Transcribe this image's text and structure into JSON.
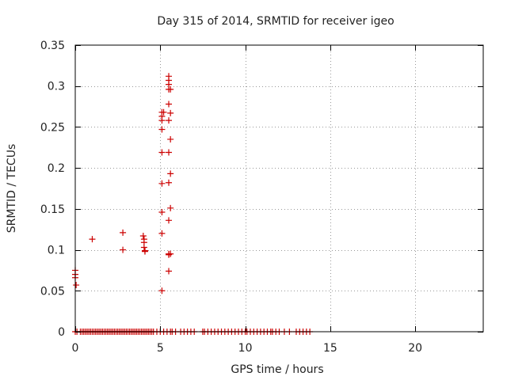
{
  "chart_data": {
    "type": "scatter",
    "title": "Day 315 of 2014, SRMTID for receiver igeo",
    "xlabel": "GPS time / hours",
    "ylabel": "SRMTID / TECUs",
    "xlim": [
      0,
      24
    ],
    "ylim": [
      0,
      0.35
    ],
    "xticks": [
      0,
      5,
      10,
      15,
      20
    ],
    "yticks": [
      0,
      0.05,
      0.1,
      0.15,
      0.2,
      0.25,
      0.3,
      0.35
    ],
    "xtick_labels": [
      "0",
      "5",
      "10",
      "15",
      "20"
    ],
    "ytick_labels": [
      "0",
      "0.05",
      "0.1",
      "0.15",
      "0.2",
      "0.25",
      "0.3",
      "0.35"
    ],
    "grid": true,
    "marker": "+",
    "color": "#cc0000",
    "series": [
      {
        "name": "SRMTID",
        "points": [
          [
            0.0,
            0.075
          ],
          [
            0.0,
            0.07
          ],
          [
            0.0,
            0.066
          ],
          [
            0.05,
            0.057
          ],
          [
            1.0,
            0.113
          ],
          [
            2.8,
            0.121
          ],
          [
            2.8,
            0.1
          ],
          [
            4.0,
            0.117
          ],
          [
            4.05,
            0.113
          ],
          [
            4.05,
            0.109
          ],
          [
            4.05,
            0.103
          ],
          [
            4.1,
            0.099
          ],
          [
            4.1,
            0.098
          ],
          [
            5.1,
            0.268
          ],
          [
            5.1,
            0.263
          ],
          [
            5.1,
            0.258
          ],
          [
            5.1,
            0.247
          ],
          [
            5.1,
            0.219
          ],
          [
            5.1,
            0.181
          ],
          [
            5.1,
            0.146
          ],
          [
            5.1,
            0.12
          ],
          [
            5.1,
            0.05
          ],
          [
            5.2,
            0.268
          ],
          [
            5.5,
            0.312
          ],
          [
            5.5,
            0.307
          ],
          [
            5.5,
            0.302
          ],
          [
            5.5,
            0.296
          ],
          [
            5.5,
            0.278
          ],
          [
            5.5,
            0.258
          ],
          [
            5.5,
            0.219
          ],
          [
            5.5,
            0.182
          ],
          [
            5.5,
            0.136
          ],
          [
            5.5,
            0.095
          ],
          [
            5.5,
            0.094
          ],
          [
            5.5,
            0.074
          ],
          [
            5.6,
            0.296
          ],
          [
            5.6,
            0.267
          ],
          [
            5.6,
            0.235
          ],
          [
            5.6,
            0.193
          ],
          [
            5.6,
            0.151
          ],
          [
            5.6,
            0.095
          ]
        ],
        "zero_x": [
          0.0,
          0.1,
          0.3,
          0.4,
          0.5,
          0.6,
          0.7,
          0.8,
          0.9,
          1.0,
          1.1,
          1.2,
          1.3,
          1.4,
          1.5,
          1.6,
          1.7,
          1.8,
          1.9,
          2.0,
          2.1,
          2.2,
          2.3,
          2.4,
          2.5,
          2.6,
          2.7,
          2.8,
          2.9,
          3.0,
          3.1,
          3.2,
          3.3,
          3.4,
          3.5,
          3.6,
          3.7,
          3.8,
          3.9,
          4.0,
          4.1,
          4.2,
          4.3,
          4.4,
          4.5,
          4.6,
          4.8,
          5.0,
          5.2,
          5.4,
          5.6,
          5.7,
          5.9,
          6.2,
          6.4,
          6.6,
          6.8,
          7.0,
          7.5,
          7.6,
          7.8,
          8.0,
          8.2,
          8.4,
          8.6,
          8.8,
          9.0,
          9.2,
          9.4,
          9.6,
          9.8,
          10.0,
          10.1,
          10.3,
          10.5,
          10.7,
          10.9,
          11.1,
          11.3,
          11.5,
          11.6,
          11.8,
          12.0,
          12.3,
          12.6,
          13.0,
          13.2,
          13.4,
          13.6,
          13.8
        ]
      }
    ]
  }
}
